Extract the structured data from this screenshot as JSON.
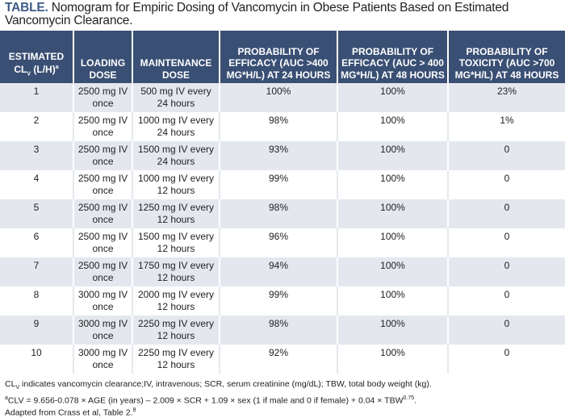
{
  "title": {
    "label": "TABLE.",
    "text": "Nomogram for Empiric Dosing of Vancomycin in Obese Patients Based on Estimated Vancomycin Clearance."
  },
  "headers": [
    {
      "main": "ESTIMATED CL",
      "sub": "V",
      "rest": " (L/H)",
      "sup": "a"
    },
    {
      "main": "LOADING DOSE"
    },
    {
      "main": "MAINTENANCE DOSE"
    },
    {
      "main": "PROBABILITY OF EFFICACY (AUC >400 MG*H/L) AT 24 HOURS"
    },
    {
      "main": "PROBABILITY OF EFFICACY (AUC > 400 MG*H/L) AT 48 HOURS"
    },
    {
      "main": "PROBABILITY OF TOXICITY (AUC >700 MG*H/L) AT 48 HOURS"
    }
  ],
  "rows": [
    [
      "1",
      "2500 mg IV once",
      "500 mg IV every 24 hours",
      "100%",
      "100%",
      "23%"
    ],
    [
      "2",
      "2500 mg IV once",
      "1000 mg IV every 24 hours",
      "98%",
      "100%",
      "1%"
    ],
    [
      "3",
      "2500 mg IV once",
      "1500 mg  IV every 24 hours",
      "93%",
      "100%",
      "0"
    ],
    [
      "4",
      "2500 mg IV once",
      "1000 mg IV every 12 hours",
      "99%",
      "100%",
      "0"
    ],
    [
      "5",
      "2500 mg IV once",
      "1250 mg  IV every 12 hours",
      "98%",
      "100%",
      "0"
    ],
    [
      "6",
      "2500 mg IV once",
      "1500 mg  IV every 12 hours",
      "96%",
      "100%",
      "0"
    ],
    [
      "7",
      "2500 mg IV once",
      "1750 mg IV every 12 hours",
      "94%",
      "100%",
      "0"
    ],
    [
      "8",
      "3000 mg IV once",
      "2000 mg IV every 12 hours",
      "99%",
      "100%",
      "0"
    ],
    [
      "9",
      "3000 mg IV once",
      "2250 mg IV every 12 hours",
      "98%",
      "100%",
      "0"
    ],
    [
      "10",
      "3000 mg IV once",
      "2250 mg IV every 12 hours",
      "92%",
      "100%",
      "0"
    ]
  ],
  "footnotes": {
    "line1": {
      "a": "CL",
      "sub": "V",
      "b": " indicates vancomycin clearance;IV, intravenous; SCR, serum creatinine (mg/dL); TBW, total body weight (kg)."
    },
    "line2": {
      "sup": "a",
      "a": "CLV = 9.656-0.078 × AGE (in years) – 2.009 × SCR + 1.09 × sex (1 if male and 0 if female) + 0.04 × TBW",
      "sup2": "0.75",
      "b": "."
    },
    "line3": {
      "a": "Adapted from Crass et al, Table 2.",
      "sup": "8"
    }
  },
  "colors": {
    "header_bg": "#3a4f74",
    "title_label": "#3d5a86",
    "row_alt": "#e4e8ee"
  }
}
